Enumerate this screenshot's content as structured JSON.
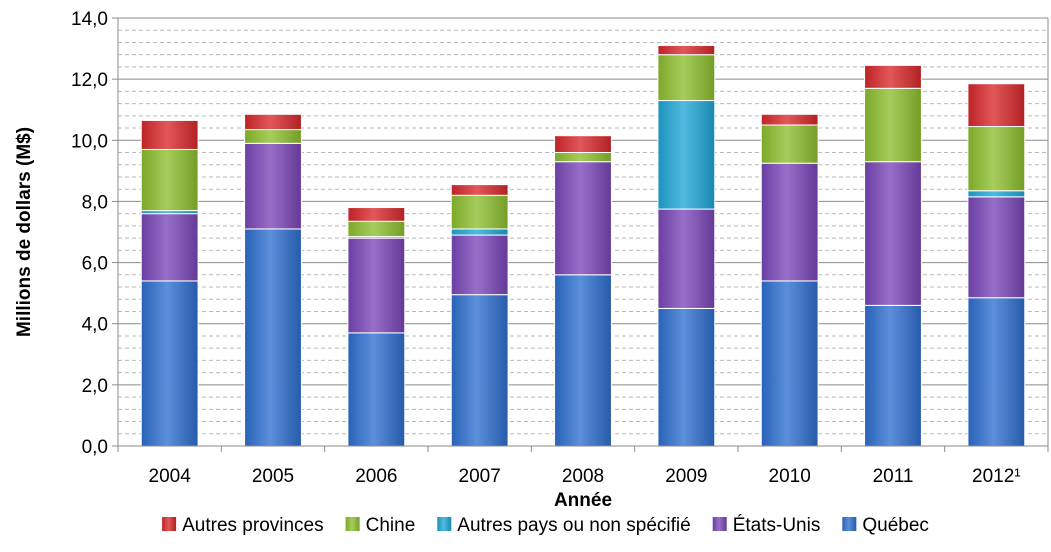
{
  "chart_data": {
    "type": "bar",
    "stacked": true,
    "categories": [
      "2004",
      "2005",
      "2006",
      "2007",
      "2008",
      "2009",
      "2010",
      "2011",
      "2012¹"
    ],
    "series": [
      {
        "name": "Québec",
        "color": "#2E6FD0",
        "values": [
          5.4,
          7.1,
          3.7,
          4.95,
          5.6,
          4.5,
          5.4,
          4.6,
          4.85
        ]
      },
      {
        "name": "États-Unis",
        "color": "#7A46B8",
        "values": [
          2.2,
          2.8,
          3.1,
          1.95,
          3.7,
          3.25,
          3.85,
          4.7,
          3.3
        ]
      },
      {
        "name": "Autres pays ou non spécifié",
        "color": "#1FA7D6",
        "values": [
          0.1,
          0.0,
          0.05,
          0.2,
          0.0,
          3.55,
          0.0,
          0.0,
          0.2
        ]
      },
      {
        "name": "Chine",
        "color": "#8DBF2E",
        "values": [
          2.0,
          0.45,
          0.5,
          1.1,
          0.3,
          1.5,
          1.25,
          2.4,
          2.1
        ]
      },
      {
        "name": "Autres provinces",
        "color": "#D8282B",
        "values": [
          0.95,
          0.5,
          0.45,
          0.35,
          0.55,
          0.3,
          0.35,
          0.75,
          1.4
        ]
      }
    ],
    "legend_order": [
      "Autres provinces",
      "Chine",
      "Autres pays ou non spécifié",
      "États-Unis",
      "Québec"
    ],
    "xlabel": "Année",
    "ylabel": "Millions de dollars (M$)",
    "ylim": [
      0,
      14
    ],
    "yticks": [
      "0,0",
      "2,0",
      "4,0",
      "6,0",
      "8,0",
      "10,0",
      "12,0",
      "14,0"
    ],
    "grid": true,
    "legend_position": "bottom"
  }
}
